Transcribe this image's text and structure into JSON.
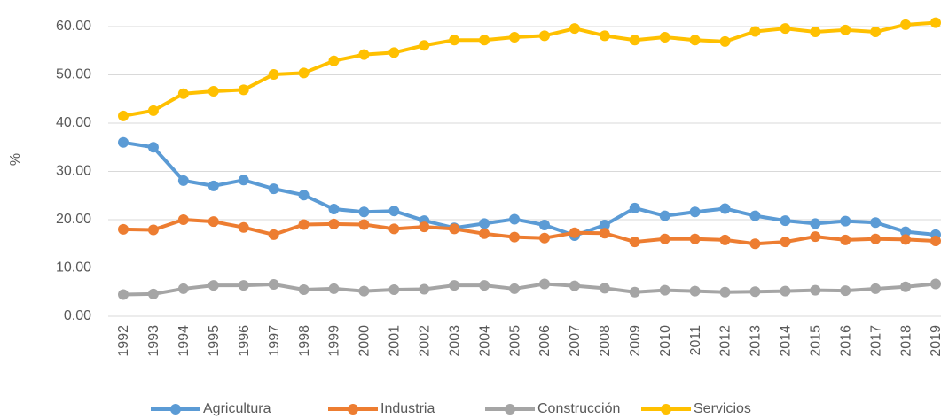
{
  "chart_data": {
    "type": "line",
    "y_label": "%",
    "categories": [
      "1992",
      "1993",
      "1994",
      "1995",
      "1996",
      "1997",
      "1998",
      "1999",
      "2000",
      "2001",
      "2002",
      "2003",
      "2004",
      "2005",
      "2006",
      "2007",
      "2008",
      "2009",
      "2010",
      "2011",
      "2012",
      "2013",
      "2014",
      "2015",
      "2016",
      "2017",
      "2018",
      "2019"
    ],
    "series": [
      {
        "name": "Agricultura",
        "color": "#5b9bd5",
        "values": [
          36.0,
          35.0,
          28.1,
          27.0,
          28.2,
          26.4,
          25.1,
          22.2,
          21.6,
          21.8,
          19.8,
          18.3,
          19.2,
          20.1,
          18.9,
          16.7,
          18.9,
          22.4,
          20.8,
          21.6,
          22.3,
          20.8,
          19.8,
          19.2,
          19.7,
          19.4,
          17.5,
          16.9
        ]
      },
      {
        "name": "Industria",
        "color": "#ed7d31",
        "values": [
          18.0,
          17.9,
          20.0,
          19.6,
          18.4,
          16.9,
          19.0,
          19.1,
          19.0,
          18.1,
          18.5,
          18.1,
          17.1,
          16.4,
          16.2,
          17.3,
          17.2,
          15.4,
          16.0,
          16.0,
          15.8,
          15.0,
          15.4,
          16.5,
          15.8,
          16.0,
          15.9,
          15.6
        ]
      },
      {
        "name": "Construcción",
        "color": "#a5a5a5",
        "values": [
          4.5,
          4.6,
          5.7,
          6.4,
          6.4,
          6.6,
          5.5,
          5.7,
          5.2,
          5.5,
          5.6,
          6.4,
          6.4,
          5.7,
          6.7,
          6.3,
          5.8,
          5.0,
          5.4,
          5.2,
          5.0,
          5.1,
          5.2,
          5.4,
          5.3,
          5.7,
          6.1,
          6.7
        ]
      },
      {
        "name": "Servicios",
        "color": "#ffc000",
        "values": [
          41.5,
          42.6,
          46.1,
          46.6,
          46.9,
          50.1,
          50.4,
          52.9,
          54.2,
          54.6,
          56.1,
          57.2,
          57.2,
          57.8,
          58.1,
          59.6,
          58.1,
          57.2,
          57.8,
          57.2,
          56.9,
          59.0,
          59.6,
          58.9,
          59.3,
          58.9,
          60.4,
          60.8
        ]
      }
    ],
    "ylim": [
      0,
      60
    ],
    "yticks": [
      {
        "value": 0,
        "label": "0.00"
      },
      {
        "value": 10,
        "label": "10.00"
      },
      {
        "value": 20,
        "label": "20.00"
      },
      {
        "value": 30,
        "label": "30.00"
      },
      {
        "value": 40,
        "label": "40.00"
      },
      {
        "value": 50,
        "label": "50.00"
      },
      {
        "value": 60,
        "label": "60.00"
      }
    ],
    "grid": true,
    "legend": "bottom"
  }
}
